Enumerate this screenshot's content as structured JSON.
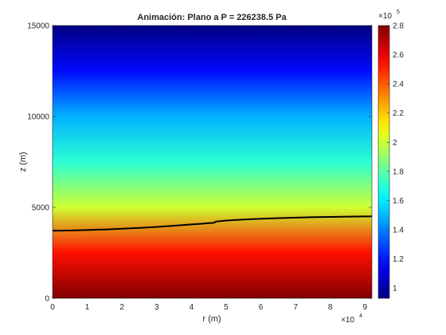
{
  "chart_data": {
    "type": "heatmap",
    "title": "Animación: Plano a P = 226238.5 Pa",
    "xlabel": "r (m)",
    "ylabel": "z (m)",
    "x_exponent_label": "×10",
    "x_exponent_power": "4",
    "xlim": [
      0,
      92000
    ],
    "ylim": [
      0,
      15000
    ],
    "xticks": [
      0,
      1,
      2,
      3,
      4,
      5,
      6,
      7,
      8,
      9
    ],
    "yticks": [
      0,
      5000,
      10000,
      15000
    ],
    "colormap": "jet",
    "colorbar": {
      "clim": [
        93000,
        280000
      ],
      "ticks": [
        1,
        1.2,
        1.4,
        1.6,
        1.8,
        2,
        2.2,
        2.4,
        2.6,
        2.8
      ],
      "exponent_label": "×10",
      "exponent_power": "5"
    },
    "field_pressure_at_z_pa": [
      {
        "z": 0,
        "p": 280000
      },
      {
        "z": 2500,
        "p": 254000
      },
      {
        "z": 5000,
        "p": 201000
      },
      {
        "z": 7500,
        "p": 171000
      },
      {
        "z": 10000,
        "p": 149000
      },
      {
        "z": 12500,
        "p": 118000
      },
      {
        "z": 15000,
        "p": 93000
      }
    ],
    "series": [
      {
        "x": [
          0,
          5000,
          10000,
          15000,
          20000,
          25000,
          30000,
          35000,
          40000,
          45000,
          46500,
          47000,
          50000,
          55000,
          60000,
          65000,
          70000,
          75000,
          80000,
          85000,
          92000
        ],
        "y": [
          3720,
          3730,
          3755,
          3785,
          3825,
          3870,
          3925,
          3990,
          4060,
          4130,
          4150,
          4220,
          4275,
          4330,
          4375,
          4410,
          4435,
          4460,
          4475,
          4490,
          4505
        ]
      }
    ]
  }
}
